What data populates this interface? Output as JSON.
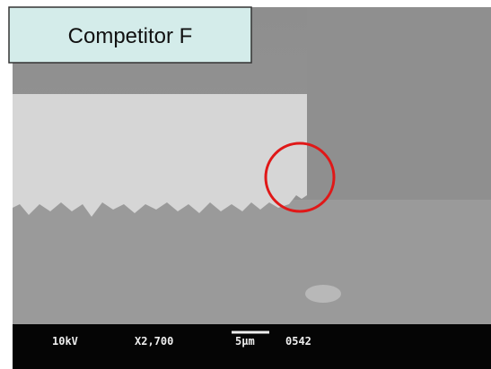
{
  "label": "Competitor F",
  "info_bar": {
    "voltage": "10kV",
    "magnification": "X2,700",
    "scale": "5µm",
    "id": "0542"
  }
}
